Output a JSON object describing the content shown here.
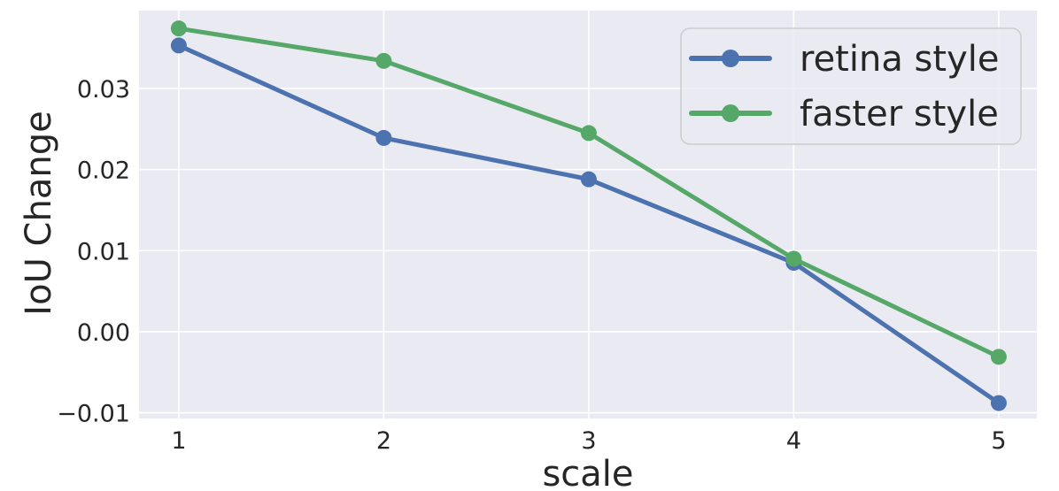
{
  "chart_data": {
    "type": "line",
    "title": "",
    "xlabel": "scale",
    "ylabel": "IoU Change",
    "x": [
      1,
      2,
      3,
      4,
      5
    ],
    "series": [
      {
        "name": "retina style",
        "color": "#4C72B0",
        "values": [
          0.0353,
          0.0239,
          0.0188,
          0.0085,
          -0.0088
        ]
      },
      {
        "name": "faster style",
        "color": "#55A868",
        "values": [
          0.0374,
          0.0334,
          0.0245,
          0.009,
          -0.0031
        ]
      }
    ],
    "xticks": {
      "values": [
        1,
        2,
        3,
        4,
        5
      ],
      "labels": [
        "1",
        "2",
        "3",
        "4",
        "5"
      ]
    },
    "yticks": {
      "values": [
        -0.01,
        0.0,
        0.01,
        0.02,
        0.03
      ],
      "labels": [
        "−0.01",
        "0.00",
        "0.01",
        "0.02",
        "0.03"
      ]
    },
    "xlim": [
      0.806,
      5.186
    ],
    "ylim": [
      -0.0107,
      0.0396
    ],
    "grid": true,
    "legend": {
      "position": "upper right",
      "entries": [
        "retina style",
        "faster style"
      ]
    },
    "colors": {
      "plot_background": "#EAEAF2",
      "grid": "#FFFFFF",
      "text": "#262626",
      "legend_background": "#EAEAF2",
      "legend_border": "#CCCCCC"
    },
    "style": {
      "line_width": 5,
      "marker_radius": 9,
      "grid_width": 1.6
    }
  }
}
